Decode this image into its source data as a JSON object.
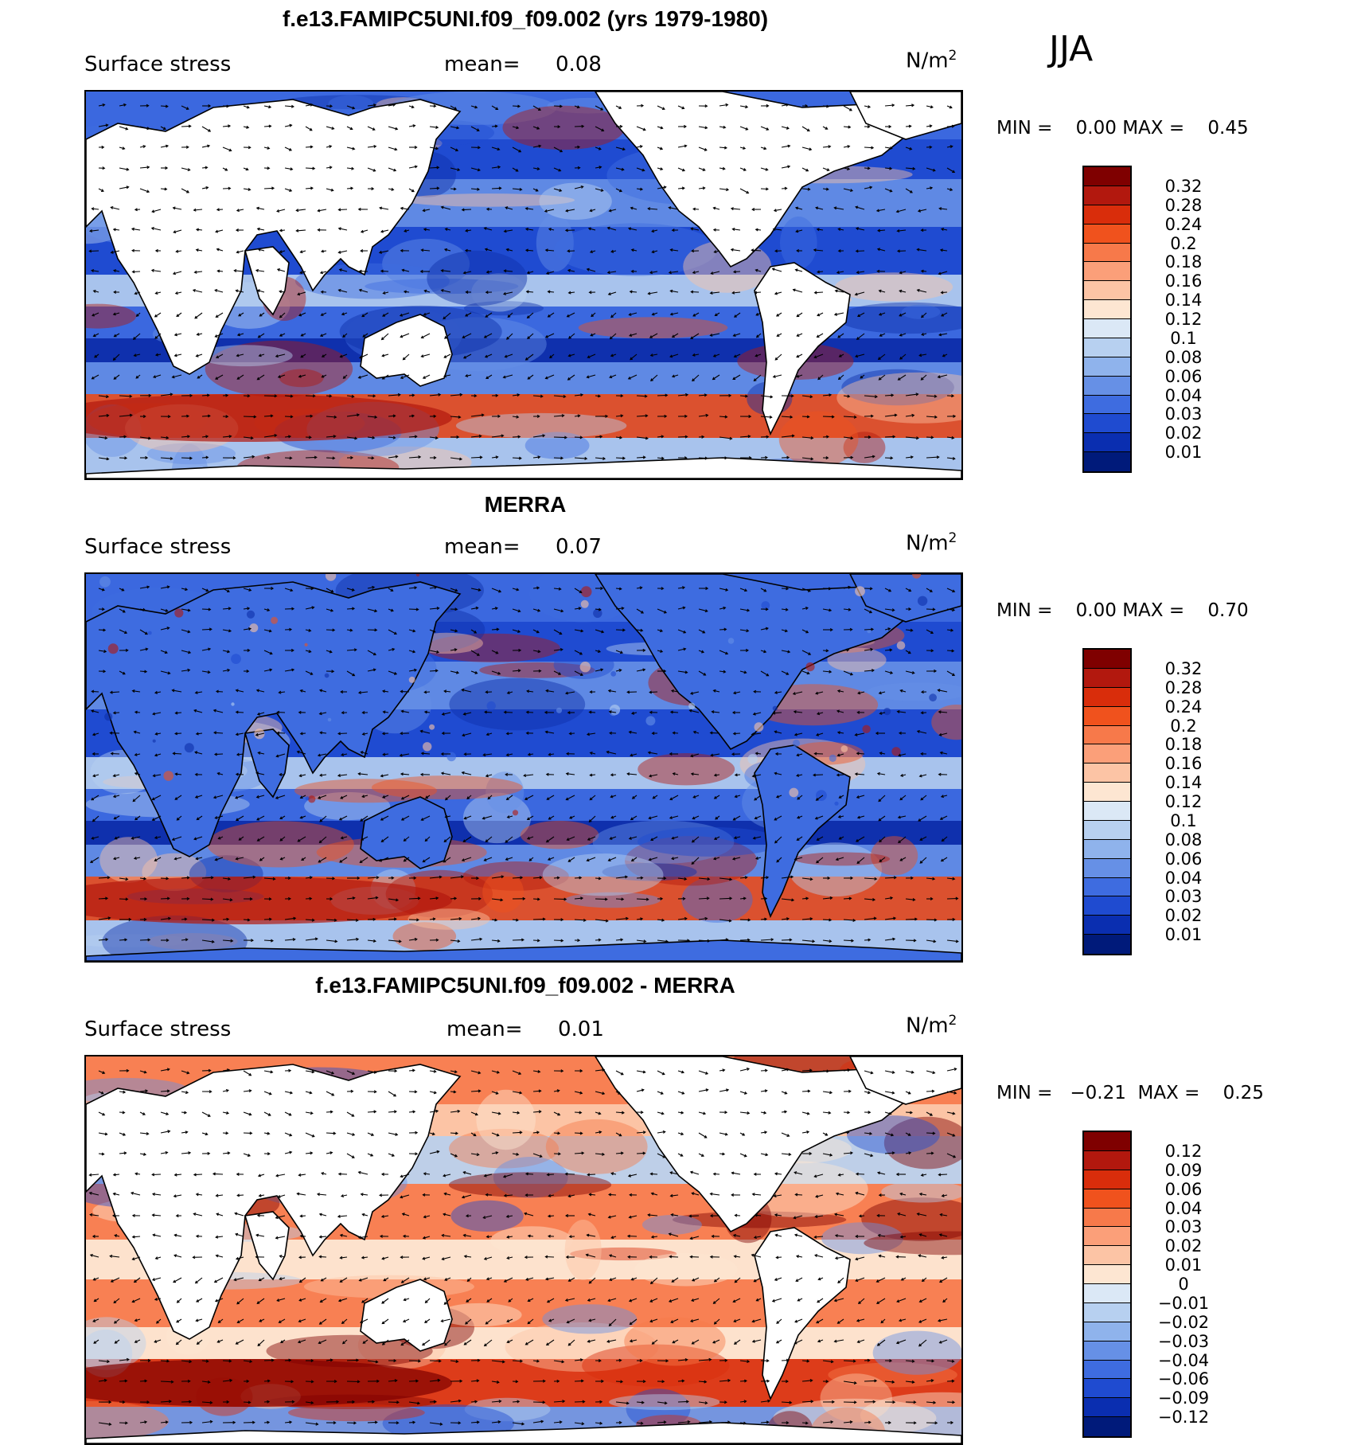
{
  "season": "JJA",
  "panels": [
    {
      "title": "f.e13.FAMIPC5UNI.f09_f09.002 (yrs 1979-1980)",
      "variable": "Surface stress",
      "mean_label": "mean=",
      "mean_value": "0.08",
      "units_base": "N/m",
      "units_exp": "2",
      "min_label": "MIN =",
      "min_value": "0.00",
      "max_label": "MAX =",
      "max_value": "0.45",
      "colorbar_labels": [
        "0.32",
        "0.28",
        "0.24",
        "0.2",
        "0.18",
        "0.16",
        "0.14",
        "0.12",
        "0.1",
        "0.08",
        "0.06",
        "0.04",
        "0.03",
        "0.02",
        "0.01"
      ],
      "colorbar_colors": [
        "#7f0000",
        "#b2180e",
        "#d92d0b",
        "#f0521d",
        "#f7794a",
        "#fb9f79",
        "#fcc4a5",
        "#fde6d2",
        "#dbe8f6",
        "#b7d0f0",
        "#8fb3ec",
        "#6690e6",
        "#3e6ce0",
        "#1f4bd0",
        "#0a2eb0",
        "#001a7a"
      ],
      "field_palette": [
        "#0d2ea8",
        "#1f4bd0",
        "#3e6ce0",
        "#6690e6",
        "#b7d0f0",
        "#fcc4a5",
        "#f0521d",
        "#b2180e"
      ]
    },
    {
      "title": "MERRA",
      "variable": "Surface stress",
      "mean_label": "mean=",
      "mean_value": "0.07",
      "units_base": "N/m",
      "units_exp": "2",
      "min_label": "MIN =",
      "min_value": "0.00",
      "max_label": "MAX =",
      "max_value": "0.70",
      "colorbar_labels": [
        "0.32",
        "0.28",
        "0.24",
        "0.2",
        "0.18",
        "0.16",
        "0.14",
        "0.12",
        "0.1",
        "0.08",
        "0.06",
        "0.04",
        "0.03",
        "0.02",
        "0.01"
      ],
      "colorbar_colors": [
        "#7f0000",
        "#b2180e",
        "#d92d0b",
        "#f0521d",
        "#f7794a",
        "#fb9f79",
        "#fcc4a5",
        "#fde6d2",
        "#dbe8f6",
        "#b7d0f0",
        "#8fb3ec",
        "#6690e6",
        "#3e6ce0",
        "#1f4bd0",
        "#0a2eb0",
        "#001a7a"
      ],
      "field_palette": [
        "#0d2ea8",
        "#1f4bd0",
        "#3e6ce0",
        "#6690e6",
        "#b7d0f0",
        "#fcc4a5",
        "#f0521d",
        "#b2180e"
      ]
    },
    {
      "title": "f.e13.FAMIPC5UNI.f09_f09.002 - MERRA",
      "variable": "Surface stress",
      "mean_label": "mean=",
      "mean_value": "0.01",
      "units_base": "N/m",
      "units_exp": "2",
      "min_label": "MIN =",
      "min_value": "−0.21",
      "max_label": "MAX =",
      "max_value": "0.25",
      "colorbar_labels": [
        "0.12",
        "0.09",
        "0.06",
        "0.04",
        "0.03",
        "0.02",
        "0.01",
        "0",
        "−0.01",
        "−0.02",
        "−0.03",
        "−0.04",
        "−0.06",
        "−0.09",
        "−0.12"
      ],
      "colorbar_colors": [
        "#7f0000",
        "#b2180e",
        "#d92d0b",
        "#f0521d",
        "#f7794a",
        "#fb9f79",
        "#fcc4a5",
        "#fde6d2",
        "#dbe8f6",
        "#b7d0f0",
        "#8fb3ec",
        "#6690e6",
        "#3e6ce0",
        "#1f4bd0",
        "#0a2eb0",
        "#001a7a"
      ],
      "field_palette": [
        "#1f4bd0",
        "#6690e6",
        "#b7d0f0",
        "#fde6d2",
        "#fcc4a5",
        "#f7794a",
        "#d92d0b",
        "#7f0000"
      ]
    }
  ]
}
